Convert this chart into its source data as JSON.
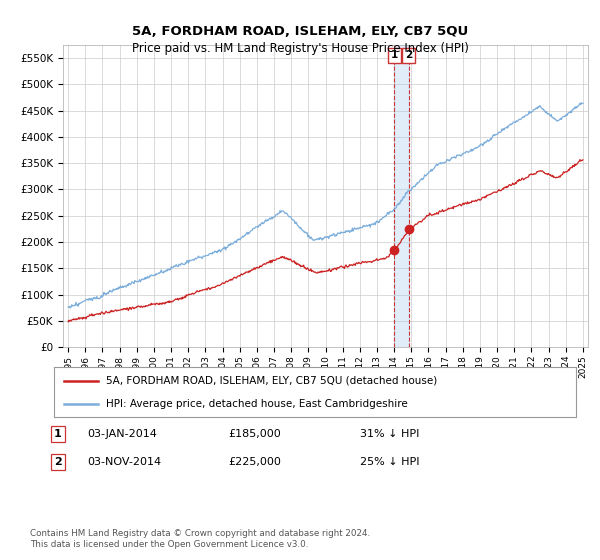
{
  "title": "5A, FORDHAM ROAD, ISLEHAM, ELY, CB7 5QU",
  "subtitle": "Price paid vs. HM Land Registry's House Price Index (HPI)",
  "ylim": [
    0,
    575000
  ],
  "yticks": [
    0,
    50000,
    100000,
    150000,
    200000,
    250000,
    300000,
    350000,
    400000,
    450000,
    500000,
    550000
  ],
  "ytick_labels": [
    "£0",
    "£50K",
    "£100K",
    "£150K",
    "£200K",
    "£250K",
    "£300K",
    "£350K",
    "£400K",
    "£450K",
    "£500K",
    "£550K"
  ],
  "hpi_color": "#7aaddb",
  "price_color": "#cc2222",
  "vline_color": "#cc3333",
  "vfill_color": "#aaccee",
  "marker_color": "#cc2222",
  "transaction1": {
    "date_num": 2014.01,
    "price": 185000,
    "label": "1",
    "date_str": "03-JAN-2014",
    "price_str": "£185,000",
    "pct_str": "31% ↓ HPI"
  },
  "transaction2": {
    "date_num": 2014.84,
    "price": 225000,
    "label": "2",
    "date_str": "03-NOV-2014",
    "price_str": "£225,000",
    "pct_str": "25% ↓ HPI"
  },
  "legend_line1": "5A, FORDHAM ROAD, ISLEHAM, ELY, CB7 5QU (detached house)",
  "legend_line2": "HPI: Average price, detached house, East Cambridgeshire",
  "footnote": "Contains HM Land Registry data © Crown copyright and database right 2024.\nThis data is licensed under the Open Government Licence v3.0.",
  "background_color": "#ffffff",
  "grid_color": "#cccccc",
  "xlim_left": 1994.7,
  "xlim_right": 2025.3
}
